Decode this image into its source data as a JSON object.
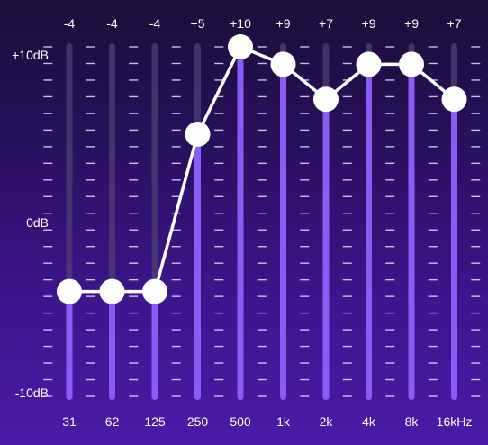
{
  "equalizer": {
    "scale": {
      "max_db": 10,
      "min_db": -10,
      "labels": [
        "+10dB",
        "0dB",
        "-10dB"
      ]
    },
    "bands": [
      {
        "freq": "31",
        "value": -4,
        "value_label": "-4"
      },
      {
        "freq": "62",
        "value": -4,
        "value_label": "-4"
      },
      {
        "freq": "125",
        "value": -4,
        "value_label": "-4"
      },
      {
        "freq": "250",
        "value": 5,
        "value_label": "+5"
      },
      {
        "freq": "500",
        "value": 10,
        "value_label": "+10"
      },
      {
        "freq": "1k",
        "value": 9,
        "value_label": "+9"
      },
      {
        "freq": "2k",
        "value": 7,
        "value_label": "+7"
      },
      {
        "freq": "4k",
        "value": 9,
        "value_label": "+9"
      },
      {
        "freq": "8k",
        "value": 9,
        "value_label": "+9"
      },
      {
        "freq": "16kHz",
        "value": 7,
        "value_label": "+7"
      }
    ],
    "colors": {
      "track": "#4a3c72",
      "fill": "#8a5cf6",
      "knob": "#ffffff",
      "curve": "#ffffff",
      "tick": "#e6e0f5"
    }
  }
}
